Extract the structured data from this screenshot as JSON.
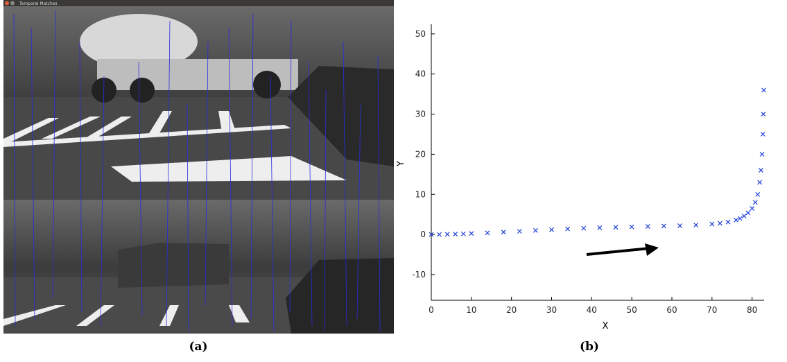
{
  "window_title": "Temporal Matches",
  "panel_labels": [
    "(a)",
    "(b)"
  ],
  "chart_data": {
    "type": "scatter",
    "xlabel": "X",
    "ylabel": "Y",
    "marker": "x",
    "color": "#1f3fd8",
    "x": [
      0,
      2,
      4,
      6,
      8,
      10,
      14,
      18,
      22,
      26,
      30,
      34,
      38,
      42,
      46,
      50,
      54,
      58,
      62,
      66,
      70,
      72,
      74,
      76,
      77,
      78,
      79,
      80,
      80.8,
      81.4,
      81.9,
      82.2,
      82.5,
      82.7,
      82.8,
      82.9
    ],
    "values": [
      0,
      0,
      0.05,
      0.1,
      0.15,
      0.25,
      0.4,
      0.6,
      0.8,
      1.0,
      1.2,
      1.4,
      1.55,
      1.7,
      1.8,
      1.9,
      2.0,
      2.1,
      2.2,
      2.35,
      2.6,
      2.8,
      3.1,
      3.6,
      4.0,
      4.6,
      5.4,
      6.5,
      8,
      10,
      13,
      16,
      20,
      25,
      30,
      36
    ],
    "xlim": [
      0,
      83
    ],
    "ylim": [
      -16.4,
      52.4
    ],
    "xticks": [
      0,
      10,
      20,
      30,
      40,
      50,
      60,
      70,
      80
    ],
    "yticks": [
      -10,
      0,
      10,
      20,
      30,
      40,
      50
    ]
  }
}
